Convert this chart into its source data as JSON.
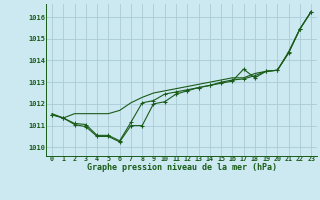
{
  "title": "Graphe pression niveau de la mer (hPa)",
  "background_color": "#cce8f0",
  "grid_color": "#aaccd8",
  "line_color": "#1a5c1a",
  "x_labels": [
    "0",
    "1",
    "2",
    "3",
    "4",
    "5",
    "6",
    "7",
    "8",
    "9",
    "10",
    "11",
    "12",
    "13",
    "14",
    "15",
    "16",
    "17",
    "18",
    "19",
    "20",
    "21",
    "22",
    "23"
  ],
  "ylim": [
    1009.6,
    1016.6
  ],
  "yticks": [
    1010,
    1011,
    1012,
    1013,
    1014,
    1015,
    1016
  ],
  "series_smooth": [
    1011.5,
    1011.35,
    1011.1,
    1011.05,
    1010.55,
    1010.55,
    1010.3,
    1011.15,
    1012.05,
    1012.15,
    1012.45,
    1012.55,
    1012.65,
    1012.75,
    1012.85,
    1013.0,
    1013.1,
    1013.15,
    1013.3,
    1013.5,
    1013.55,
    1014.4,
    1015.45,
    1016.25
  ],
  "series_low": [
    1011.5,
    1011.35,
    1011.05,
    1010.95,
    1010.5,
    1010.5,
    1010.25,
    1011.0,
    1011.0,
    1012.0,
    1012.1,
    1012.45,
    1012.6,
    1012.75,
    1012.85,
    1012.95,
    1013.05,
    1013.6,
    1013.2,
    1013.5,
    1013.55,
    1014.35,
    1015.45,
    1016.25
  ],
  "series_upper": [
    1011.55,
    1011.35,
    1011.55,
    1011.55,
    1011.55,
    1011.55,
    1011.7,
    1012.05,
    1012.3,
    1012.5,
    1012.6,
    1012.7,
    1012.8,
    1012.9,
    1013.0,
    1013.1,
    1013.2,
    1013.2,
    1013.4,
    1013.5,
    1013.55,
    1014.35,
    1015.45,
    1016.25
  ]
}
